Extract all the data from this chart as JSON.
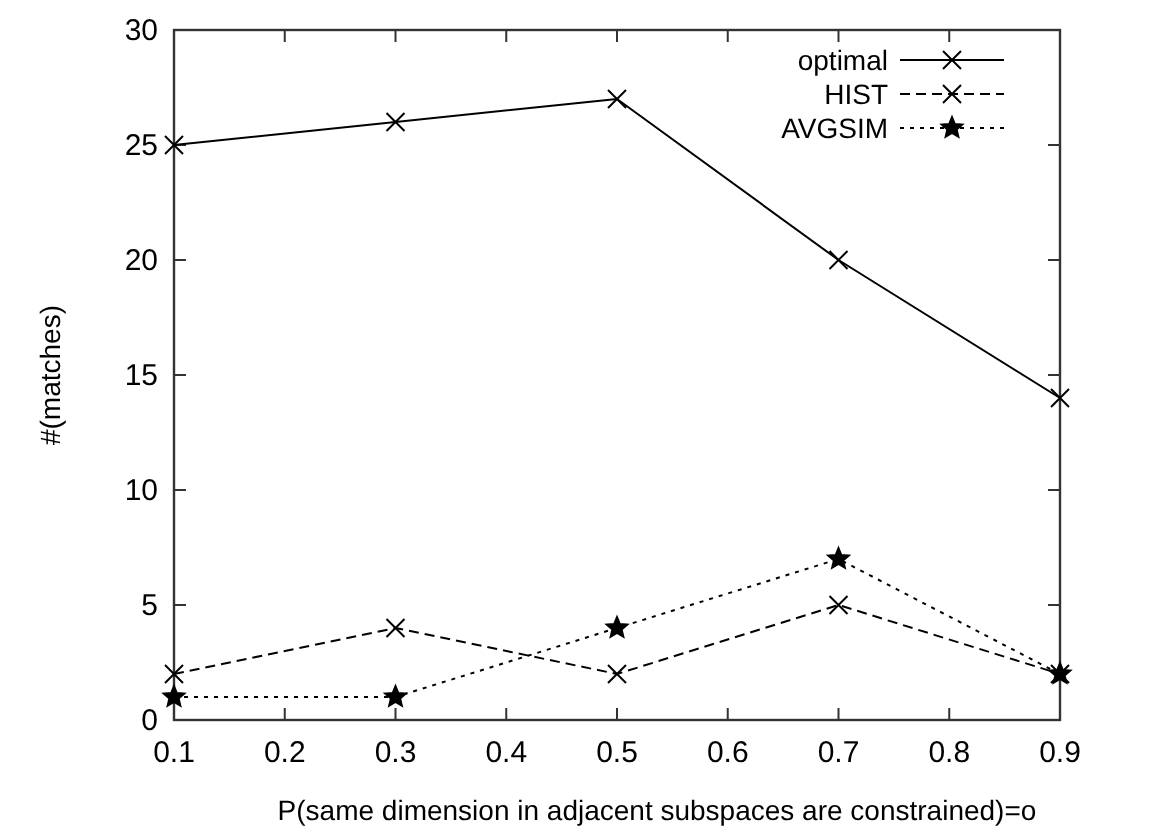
{
  "chart_data": {
    "type": "line",
    "xlabel": "P(same dimension in adjacent subspaces are constrained)=o",
    "ylabel": "#(matches)",
    "x": [
      0.1,
      0.3,
      0.5,
      0.7,
      0.9
    ],
    "series": [
      {
        "name": "optimal",
        "color": "#000000",
        "values": [
          25,
          26,
          27,
          20,
          14
        ],
        "line_style": "solid",
        "marker": "cross"
      },
      {
        "name": "HIST",
        "color": "#000000",
        "values": [
          2,
          4,
          2,
          5,
          2
        ],
        "line_style": "dashed",
        "marker": "cross"
      },
      {
        "name": "AVGSIM",
        "color": "#000000",
        "values": [
          1,
          1,
          4,
          7,
          2
        ],
        "line_style": "dotted",
        "marker": "star"
      }
    ],
    "xlim": [
      0.1,
      0.9
    ],
    "xticks": [
      0.1,
      0.2,
      0.3,
      0.4,
      0.5,
      0.6,
      0.7,
      0.8,
      0.9
    ],
    "ylim": [
      0,
      30
    ],
    "yticks": [
      0,
      5,
      10,
      15,
      20,
      25,
      30
    ],
    "grid": false,
    "legend": "top right"
  }
}
